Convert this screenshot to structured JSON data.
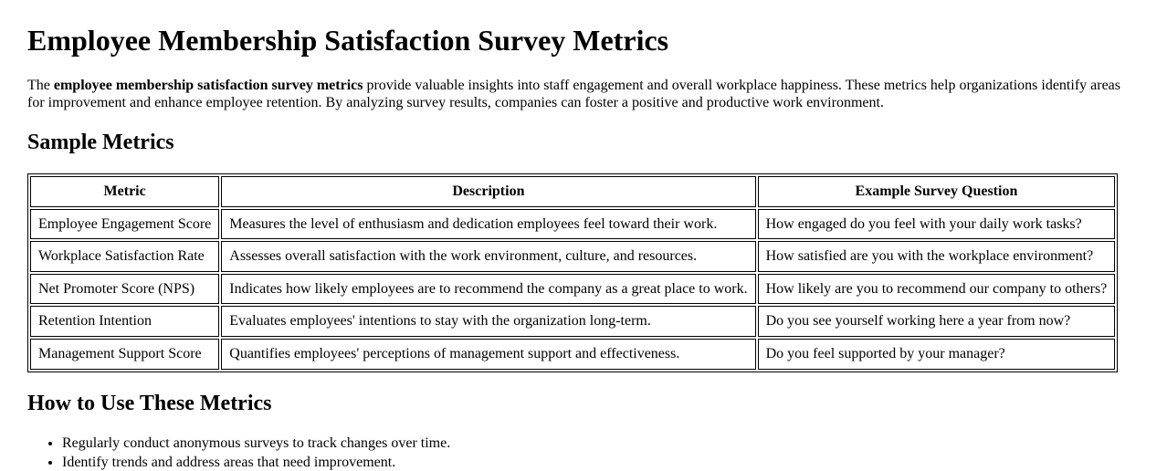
{
  "title": "Employee Membership Satisfaction Survey Metrics",
  "intro": {
    "lead": "The ",
    "bold": "employee membership satisfaction survey metrics",
    "rest": " provide valuable insights into staff engagement and overall workplace happiness. These metrics help organizations identify areas for improvement and enhance employee retention. By analyzing survey results, companies can foster a positive and productive work environment."
  },
  "sample_metrics": {
    "heading": "Sample Metrics",
    "table": {
      "headers": [
        "Metric",
        "Description",
        "Example Survey Question"
      ],
      "rows": [
        [
          "Employee Engagement Score",
          "Measures the level of enthusiasm and dedication employees feel toward their work.",
          "How engaged do you feel with your daily work tasks?"
        ],
        [
          "Workplace Satisfaction Rate",
          "Assesses overall satisfaction with the work environment, culture, and resources.",
          "How satisfied are you with the workplace environment?"
        ],
        [
          "Net Promoter Score (NPS)",
          "Indicates how likely employees are to recommend the company as a great place to work.",
          "How likely are you to recommend our company to others?"
        ],
        [
          "Retention Intention",
          "Evaluates employees' intentions to stay with the organization long-term.",
          "Do you see yourself working here a year from now?"
        ],
        [
          "Management Support Score",
          "Quantifies employees' perceptions of management support and effectiveness.",
          "Do you feel supported by your manager?"
        ]
      ]
    }
  },
  "how_to_use": {
    "heading": "How to Use These Metrics",
    "bullets": [
      "Regularly conduct anonymous surveys to track changes over time.",
      "Identify trends and address areas that need improvement."
    ]
  },
  "colors": {
    "text": "#000000",
    "background": "#ffffff",
    "table_border": "#000000"
  }
}
